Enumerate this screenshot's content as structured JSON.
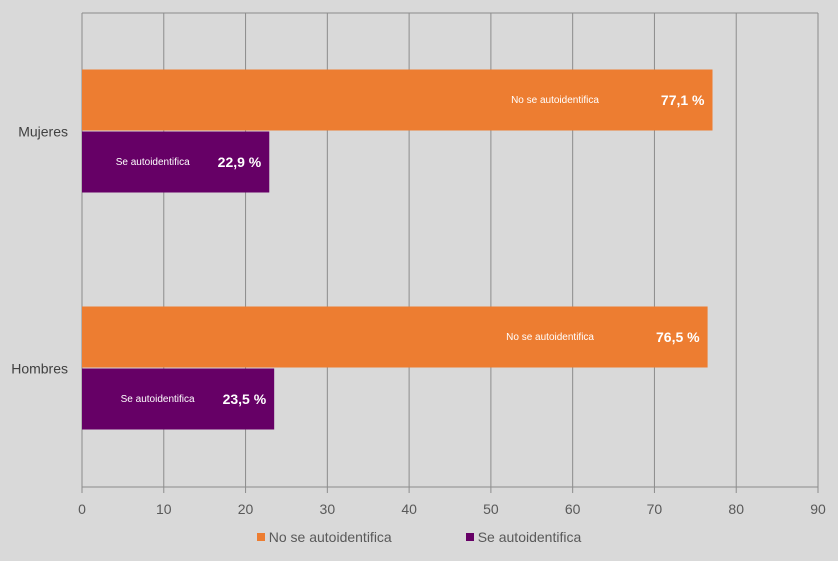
{
  "chart_data": {
    "type": "bar",
    "orientation": "horizontal",
    "categories": [
      "Mujeres",
      "Hombres"
    ],
    "series": [
      {
        "name": "No se autoidentifica",
        "values": [
          77.1,
          76.5
        ],
        "labels": [
          "77,1 %",
          "76,5 %"
        ],
        "color": "#ed7d31"
      },
      {
        "name": "Se autoidentifica",
        "values": [
          22.9,
          23.5
        ],
        "labels": [
          "22,9 %",
          "23,5 %"
        ],
        "color": "#660066"
      }
    ],
    "xlim": [
      0,
      90
    ],
    "xticks": [
      "0",
      "10",
      "20",
      "30",
      "40",
      "50",
      "60",
      "70",
      "80",
      "90"
    ],
    "grid": true,
    "legend": "bottom",
    "title": "",
    "xlabel": "",
    "ylabel": ""
  }
}
